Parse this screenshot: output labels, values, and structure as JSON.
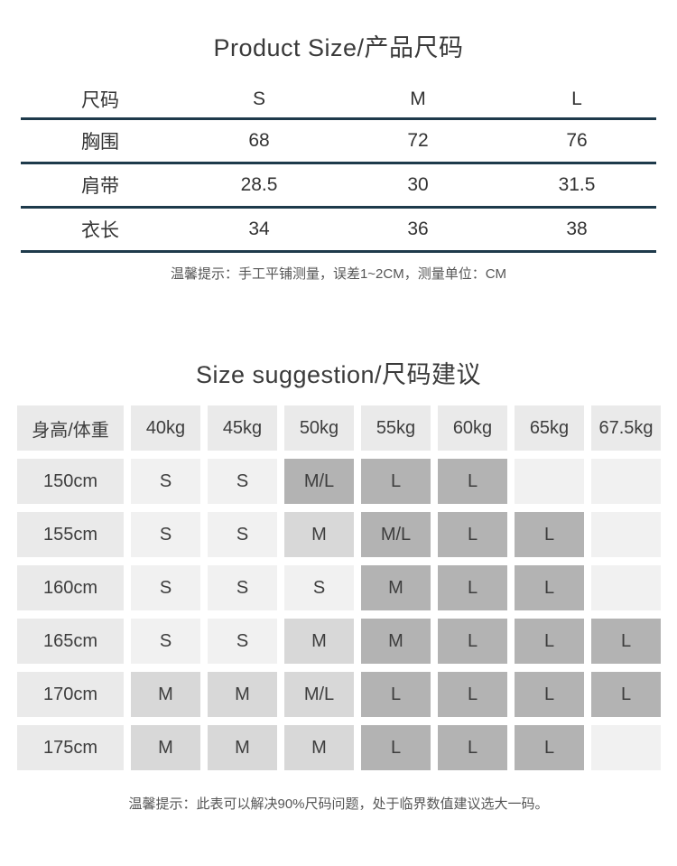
{
  "colors": {
    "divider": "#1e3a4b",
    "cell_header": "#eaeaea",
    "cell_light": "#f1f1f1",
    "cell_mid": "#d8d8d8",
    "cell_dark": "#b3b3b3"
  },
  "product_size": {
    "title": "Product Size/产品尺码",
    "header": [
      "尺码",
      "S",
      "M",
      "L"
    ],
    "rows": [
      [
        "胸围",
        "68",
        "72",
        "76"
      ],
      [
        "肩带",
        "28.5",
        "30",
        "31.5"
      ],
      [
        "衣长",
        "34",
        "36",
        "38"
      ]
    ],
    "note": "温馨提示：手工平铺测量，误差1~2CM，测量单位：CM"
  },
  "size_suggestion": {
    "title": "Size suggestion/尺码建议",
    "columns": [
      "身高/体重",
      "40kg",
      "45kg",
      "50kg",
      "55kg",
      "60kg",
      "65kg",
      "67.5kg"
    ],
    "rows": [
      {
        "height": "150cm",
        "cells": [
          {
            "value": "S",
            "shade": "light"
          },
          {
            "value": "S",
            "shade": "light"
          },
          {
            "value": "M/L",
            "shade": "dark"
          },
          {
            "value": "L",
            "shade": "dark"
          },
          {
            "value": "L",
            "shade": "dark"
          },
          {
            "value": "",
            "shade": "light"
          },
          {
            "value": "",
            "shade": "light"
          }
        ]
      },
      {
        "height": "155cm",
        "cells": [
          {
            "value": "S",
            "shade": "light"
          },
          {
            "value": "S",
            "shade": "light"
          },
          {
            "value": "M",
            "shade": "mid"
          },
          {
            "value": "M/L",
            "shade": "dark"
          },
          {
            "value": "L",
            "shade": "dark"
          },
          {
            "value": "L",
            "shade": "dark"
          },
          {
            "value": "",
            "shade": "light"
          }
        ]
      },
      {
        "height": "160cm",
        "cells": [
          {
            "value": "S",
            "shade": "light"
          },
          {
            "value": "S",
            "shade": "light"
          },
          {
            "value": "S",
            "shade": "light"
          },
          {
            "value": "M",
            "shade": "dark"
          },
          {
            "value": "L",
            "shade": "dark"
          },
          {
            "value": "L",
            "shade": "dark"
          },
          {
            "value": "",
            "shade": "light"
          }
        ]
      },
      {
        "height": "165cm",
        "cells": [
          {
            "value": "S",
            "shade": "light"
          },
          {
            "value": "S",
            "shade": "light"
          },
          {
            "value": "M",
            "shade": "mid"
          },
          {
            "value": "M",
            "shade": "dark"
          },
          {
            "value": "L",
            "shade": "dark"
          },
          {
            "value": "L",
            "shade": "dark"
          },
          {
            "value": "L",
            "shade": "dark"
          }
        ]
      },
      {
        "height": "170cm",
        "cells": [
          {
            "value": "M",
            "shade": "mid"
          },
          {
            "value": "M",
            "shade": "mid"
          },
          {
            "value": "M/L",
            "shade": "mid"
          },
          {
            "value": "L",
            "shade": "dark"
          },
          {
            "value": "L",
            "shade": "dark"
          },
          {
            "value": "L",
            "shade": "dark"
          },
          {
            "value": "L",
            "shade": "dark"
          }
        ]
      },
      {
        "height": "175cm",
        "cells": [
          {
            "value": "M",
            "shade": "mid"
          },
          {
            "value": "M",
            "shade": "mid"
          },
          {
            "value": "M",
            "shade": "mid"
          },
          {
            "value": "L",
            "shade": "dark"
          },
          {
            "value": "L",
            "shade": "dark"
          },
          {
            "value": "L",
            "shade": "dark"
          },
          {
            "value": "",
            "shade": "light"
          }
        ]
      }
    ],
    "note": "温馨提示：此表可以解决90%尺码问题，处于临界数值建议选大一码。"
  }
}
